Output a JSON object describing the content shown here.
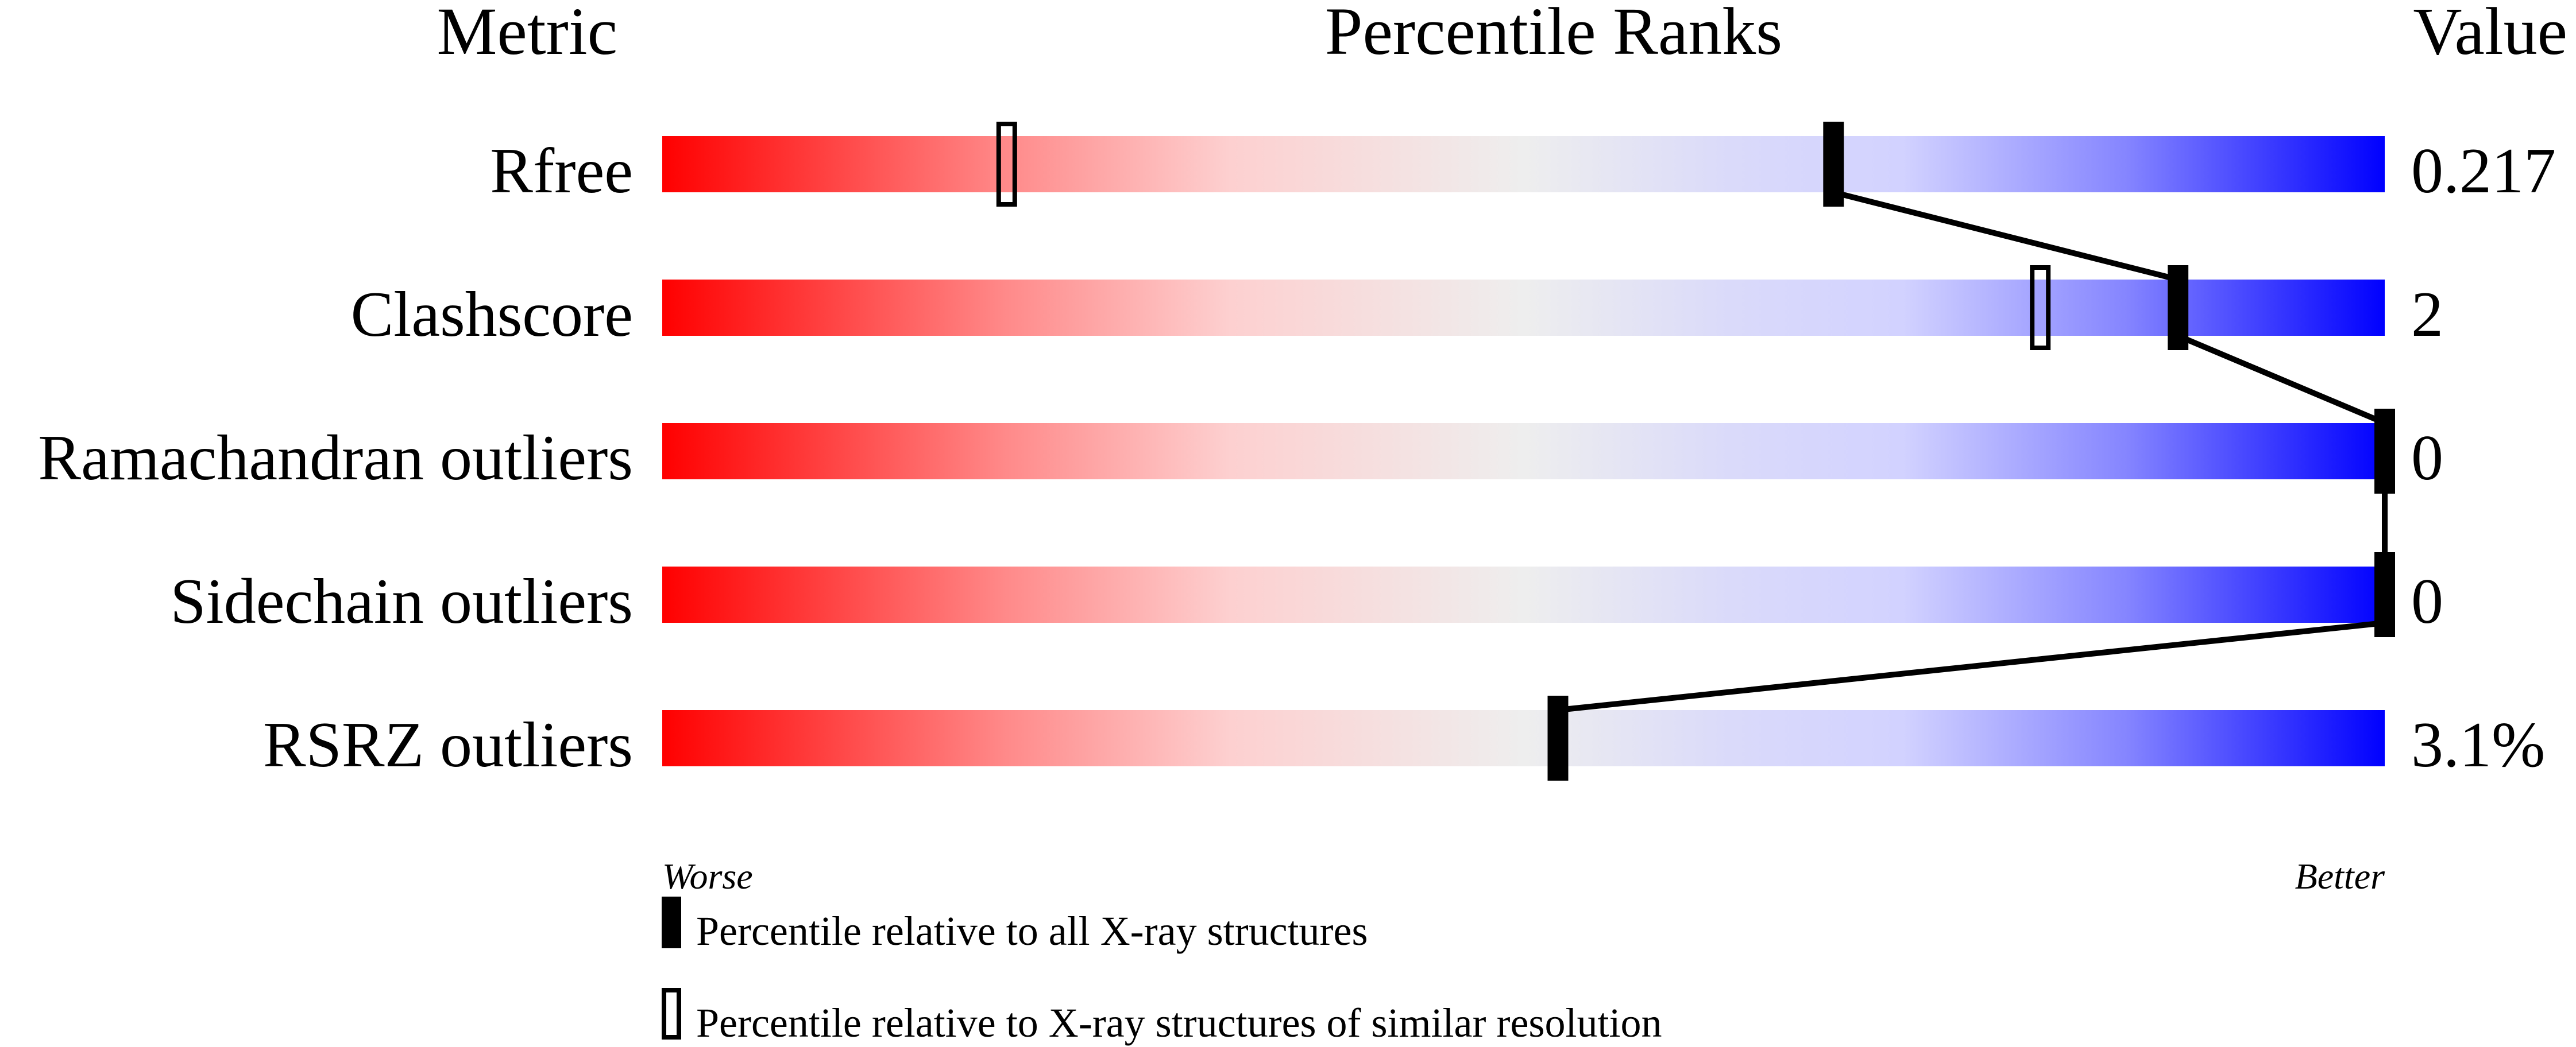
{
  "chart_data": {
    "type": "percentile-ranks",
    "headers": {
      "metric": "Metric",
      "ranks": "Percentile Ranks",
      "value": "Value"
    },
    "axis": {
      "left": "Worse",
      "right": "Better",
      "range": [
        0,
        100
      ]
    },
    "metrics": [
      {
        "name": "Rfree",
        "value": "0.217",
        "percentile_all": 68,
        "percentile_similar": 20
      },
      {
        "name": "Clashscore",
        "value": "2",
        "percentile_all": 88,
        "percentile_similar": 80
      },
      {
        "name": "Ramachandran outliers",
        "value": "0",
        "percentile_all": 100,
        "percentile_similar": null
      },
      {
        "name": "Sidechain outliers",
        "value": "0",
        "percentile_all": 100,
        "percentile_similar": null
      },
      {
        "name": "RSRZ outliers",
        "value": "3.1%",
        "percentile_all": 52,
        "percentile_similar": null
      }
    ],
    "legend": {
      "all": "Percentile relative to all X-ray structures",
      "similar": "Percentile relative to X-ray structures of similar resolution"
    },
    "colors": {
      "worse": "#ff0000",
      "middle": "#eeeeee",
      "better": "#0000ff",
      "marker": "#000000"
    }
  }
}
